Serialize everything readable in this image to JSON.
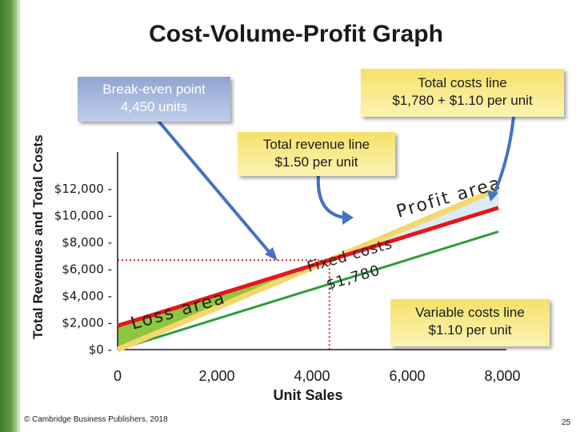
{
  "chart_data": {
    "type": "line",
    "title": "Cost-Volume-Profit Graph",
    "xlabel": "Unit Sales",
    "ylabel": "Total Revenues and Total Costs",
    "xlim": [
      0,
      8000
    ],
    "ylim": [
      0,
      12000
    ],
    "x_ticks": [
      0,
      2000,
      4000,
      6000,
      8000
    ],
    "x_tick_labels": [
      "0",
      "2,000",
      "4,000",
      "6,000",
      "8,000"
    ],
    "y_ticks": [
      0,
      2000,
      4000,
      6000,
      8000,
      10000,
      12000
    ],
    "y_tick_labels": [
      "$0 -",
      "$2,000 -",
      "$4,000 -",
      "$6,000 -",
      "$8,000 -",
      "$10,000 -",
      "$12,000 -"
    ],
    "series": [
      {
        "key": "total_cost",
        "x": [
          0,
          8000
        ],
        "y": [
          1780,
          10580
        ],
        "color": "#e8151b"
      },
      {
        "key": "total_revenue",
        "x": [
          0,
          8000
        ],
        "y": [
          0,
          12000
        ],
        "color": "#f5d76e"
      },
      {
        "key": "variable_cost",
        "x": [
          0,
          8000
        ],
        "y": [
          0,
          8800
        ],
        "color": "#2d9d3a"
      }
    ],
    "break_even": {
      "units": 4450,
      "dollars": 6675
    },
    "annotations": {
      "break_even": [
        "Break-even point",
        "4,450 units"
      ],
      "total_cost": [
        "Total costs line",
        "$1,780 + $1.10 per unit"
      ],
      "total_revenue": [
        "Total revenue line",
        "$1.50 per unit"
      ],
      "variable_cost": [
        "Variable costs line",
        "$1.10 per unit"
      ],
      "profit_area": "Profit area",
      "loss_area": "Loss area",
      "fixed_costs": [
        "Fixed costs",
        "$1,780"
      ]
    },
    "colors": {
      "profit_fill": "#dcebf5",
      "loss_fill": "#8dc63f",
      "axis": "#1a1a1a",
      "guide_dotted": "#d9242a",
      "arrow": "#4472c4"
    }
  },
  "footer": "© Cambridge Business Publishers, 2018",
  "page_number": "25"
}
